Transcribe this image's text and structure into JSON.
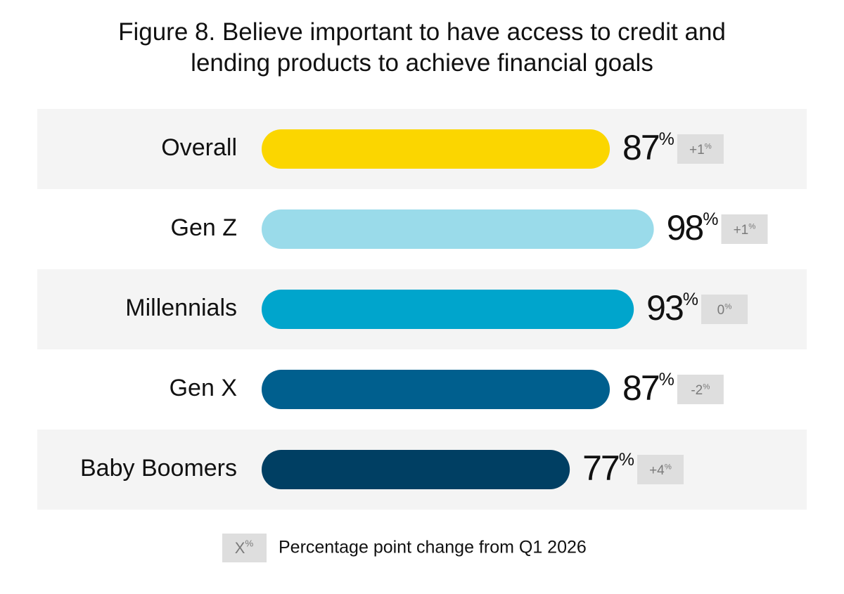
{
  "chart_data": {
    "type": "bar",
    "orientation": "horizontal",
    "title": "Figure 8. Believe important to have access to credit and lending products to achieve financial goals",
    "categories": [
      "Overall",
      "Gen Z",
      "Millennials",
      "Gen X",
      "Baby Boomers"
    ],
    "values": [
      87,
      98,
      93,
      87,
      77
    ],
    "value_labels": [
      "87%",
      "98%",
      "93%",
      "87%",
      "77%"
    ],
    "change_labels": [
      "+1%",
      "+1%",
      "0%",
      "-2%",
      "+4%"
    ],
    "colors": [
      "#fbd600",
      "#9adbea",
      "#00a5cc",
      "#005f8e",
      "#003f63"
    ],
    "xlim": [
      0,
      100
    ],
    "legend": {
      "badge": "X%",
      "text": "Percentage point change from Q1 2026"
    }
  }
}
